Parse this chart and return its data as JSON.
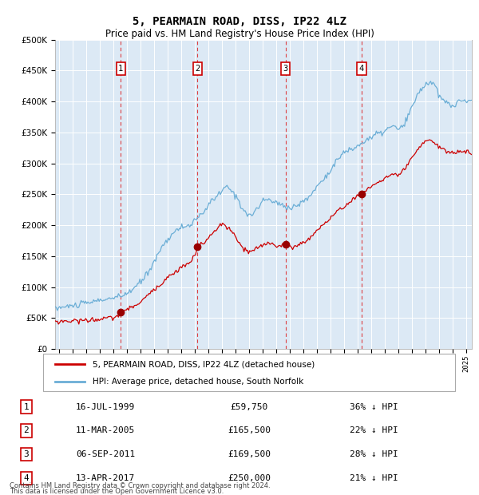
{
  "title1": "5, PEARMAIN ROAD, DISS, IP22 4LZ",
  "title2": "Price paid vs. HM Land Registry's House Price Index (HPI)",
  "legend_line1": "5, PEARMAIN ROAD, DISS, IP22 4LZ (detached house)",
  "legend_line2": "HPI: Average price, detached house, South Norfolk",
  "footnote1": "Contains HM Land Registry data © Crown copyright and database right 2024.",
  "footnote2": "This data is licensed under the Open Government Licence v3.0.",
  "hpi_color": "#6baed6",
  "price_color": "#cc0000",
  "sale_marker_color": "#990000",
  "bg_color": "#dce9f5",
  "transactions": [
    {
      "num": 1,
      "date_dec": 1999.54,
      "price": 59750,
      "label": "16-JUL-1999",
      "price_str": "£59,750",
      "pct": "36%"
    },
    {
      "num": 2,
      "date_dec": 2005.19,
      "price": 165500,
      "label": "11-MAR-2005",
      "price_str": "£165,500",
      "pct": "22%"
    },
    {
      "num": 3,
      "date_dec": 2011.68,
      "price": 169500,
      "label": "06-SEP-2011",
      "price_str": "£169,500",
      "pct": "28%"
    },
    {
      "num": 4,
      "date_dec": 2017.28,
      "price": 250000,
      "label": "13-APR-2017",
      "price_str": "£250,000",
      "pct": "21%"
    }
  ],
  "ylim": [
    0,
    500000
  ],
  "yticks": [
    0,
    50000,
    100000,
    150000,
    200000,
    250000,
    300000,
    350000,
    400000,
    450000,
    500000
  ],
  "xlim_start": 1994.7,
  "xlim_end": 2025.4
}
